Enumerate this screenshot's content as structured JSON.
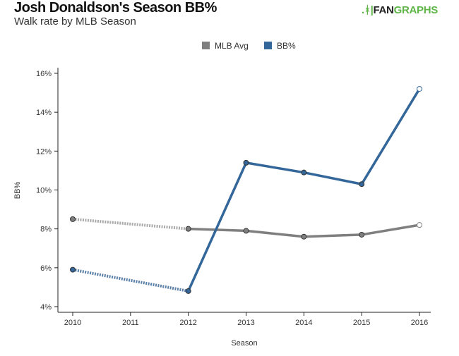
{
  "header": {
    "title": "Josh Donaldson's Season BB%",
    "subtitle": "Walk rate by MLB Season",
    "logo_text_a": "FAN",
    "logo_text_b": "GRAPHS"
  },
  "colors": {
    "mlb": "#7f7f7f",
    "mlb_dashed": "#a9a9a9",
    "bb": "#336699",
    "bb_dashed": "#5a7fa8",
    "logo": "#5fb548"
  },
  "chart_data": {
    "type": "line",
    "title": "Josh Donaldson's Season BB%",
    "subtitle": "Walk rate by MLB Season",
    "xlabel": "Season",
    "ylabel": "BB%",
    "x": [
      2010,
      2011,
      2012,
      2013,
      2014,
      2015,
      2016
    ],
    "xticks": [
      "2010",
      "2011",
      "2012",
      "2013",
      "2014",
      "2015",
      "2016"
    ],
    "ylim": [
      4,
      16
    ],
    "yticks": [
      "4%",
      "6%",
      "8%",
      "10%",
      "12%",
      "14%",
      "16%"
    ],
    "yticks_values": [
      4,
      6,
      8,
      10,
      12,
      14,
      16
    ],
    "legend": {
      "placement": "top-center",
      "entries": [
        "MLB Avg",
        "BB%"
      ]
    },
    "series": [
      {
        "name": "MLB Avg",
        "points": [
          [
            2010,
            8.5
          ],
          [
            2012,
            8.0
          ],
          [
            2013,
            7.9
          ],
          [
            2014,
            7.6
          ],
          [
            2015,
            7.7
          ],
          [
            2016,
            8.2
          ]
        ]
      },
      {
        "name": "BB%",
        "points": [
          [
            2010,
            5.9
          ],
          [
            2012,
            4.8
          ],
          [
            2013,
            11.4
          ],
          [
            2014,
            10.9
          ],
          [
            2015,
            10.3
          ],
          [
            2016,
            15.2
          ]
        ]
      }
    ],
    "note": "2011 missing; segment bridging gap drawn dotted; latest point open circle"
  }
}
